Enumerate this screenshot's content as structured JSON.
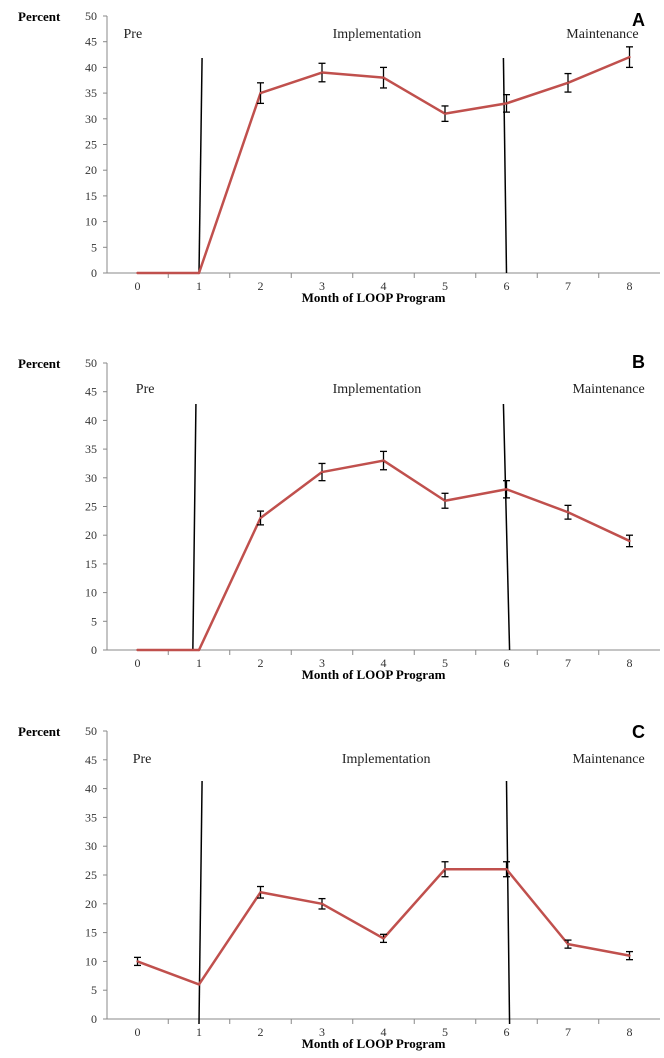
{
  "chart_data": [
    {
      "panel": "A",
      "type": "line",
      "ylabel": "Percent",
      "xlabel": "Month of LOOP Program",
      "ylim": [
        0,
        50
      ],
      "yticks": [
        0,
        5,
        10,
        15,
        20,
        25,
        30,
        35,
        40,
        45,
        50
      ],
      "x": [
        0,
        1,
        2,
        3,
        4,
        5,
        6,
        7,
        8
      ],
      "xticks": [
        0,
        1,
        2,
        3,
        4,
        5,
        6,
        7,
        8
      ],
      "values": [
        0,
        0,
        35,
        39,
        38,
        31,
        33,
        37,
        42
      ],
      "error": [
        null,
        null,
        2,
        1.8,
        2,
        1.5,
        1.7,
        1.8,
        2
      ],
      "phases": [
        "Pre",
        "Implementation",
        "Maintenance"
      ],
      "phase_label_x": [
        0,
        3.4,
        7.2
      ],
      "dividers": [
        [
          1,
          1.05
        ],
        [
          6,
          5.95
        ]
      ],
      "color": "#C0504D"
    },
    {
      "panel": "B",
      "type": "line",
      "ylabel": "Percent",
      "xlabel": "Month of LOOP Program",
      "ylim": [
        0,
        50
      ],
      "yticks": [
        0,
        5,
        10,
        15,
        20,
        25,
        30,
        35,
        40,
        45,
        50
      ],
      "x": [
        0,
        1,
        2,
        3,
        4,
        5,
        6,
        7,
        8
      ],
      "xticks": [
        0,
        1,
        2,
        3,
        4,
        5,
        6,
        7,
        8
      ],
      "values": [
        0,
        0,
        23,
        31,
        33,
        26,
        28,
        24,
        19
      ],
      "error": [
        null,
        null,
        1.2,
        1.5,
        1.6,
        1.3,
        1.5,
        1.2,
        1
      ],
      "phases": [
        "Pre",
        "Implementation",
        "Maintenance"
      ],
      "phase_label_x": [
        0.2,
        3.4,
        7.3
      ],
      "dividers": [
        [
          0.9,
          0.95
        ],
        [
          6.05,
          5.95
        ]
      ],
      "color": "#C0504D"
    },
    {
      "panel": "C",
      "type": "line",
      "ylabel": "Percent",
      "xlabel": "Month of LOOP Program",
      "ylim": [
        0,
        50
      ],
      "yticks": [
        0,
        5,
        10,
        15,
        20,
        25,
        30,
        35,
        40,
        45,
        50
      ],
      "x": [
        0,
        1,
        2,
        3,
        4,
        5,
        6,
        7,
        8
      ],
      "xticks": [
        0,
        1,
        2,
        3,
        4,
        5,
        6,
        7,
        8
      ],
      "values": [
        10,
        6,
        22,
        20,
        14,
        26,
        26,
        13,
        11
      ],
      "error": [
        0.7,
        null,
        1,
        0.9,
        0.7,
        1.3,
        1.3,
        0.7,
        0.7
      ],
      "phases": [
        "Pre",
        "Implementation",
        "Maintenance"
      ],
      "phase_label_x": [
        0.15,
        3.55,
        7.3
      ],
      "dividers": [
        [
          1,
          1.05
        ],
        [
          6.05,
          6
        ]
      ],
      "color": "#C0504D"
    }
  ]
}
